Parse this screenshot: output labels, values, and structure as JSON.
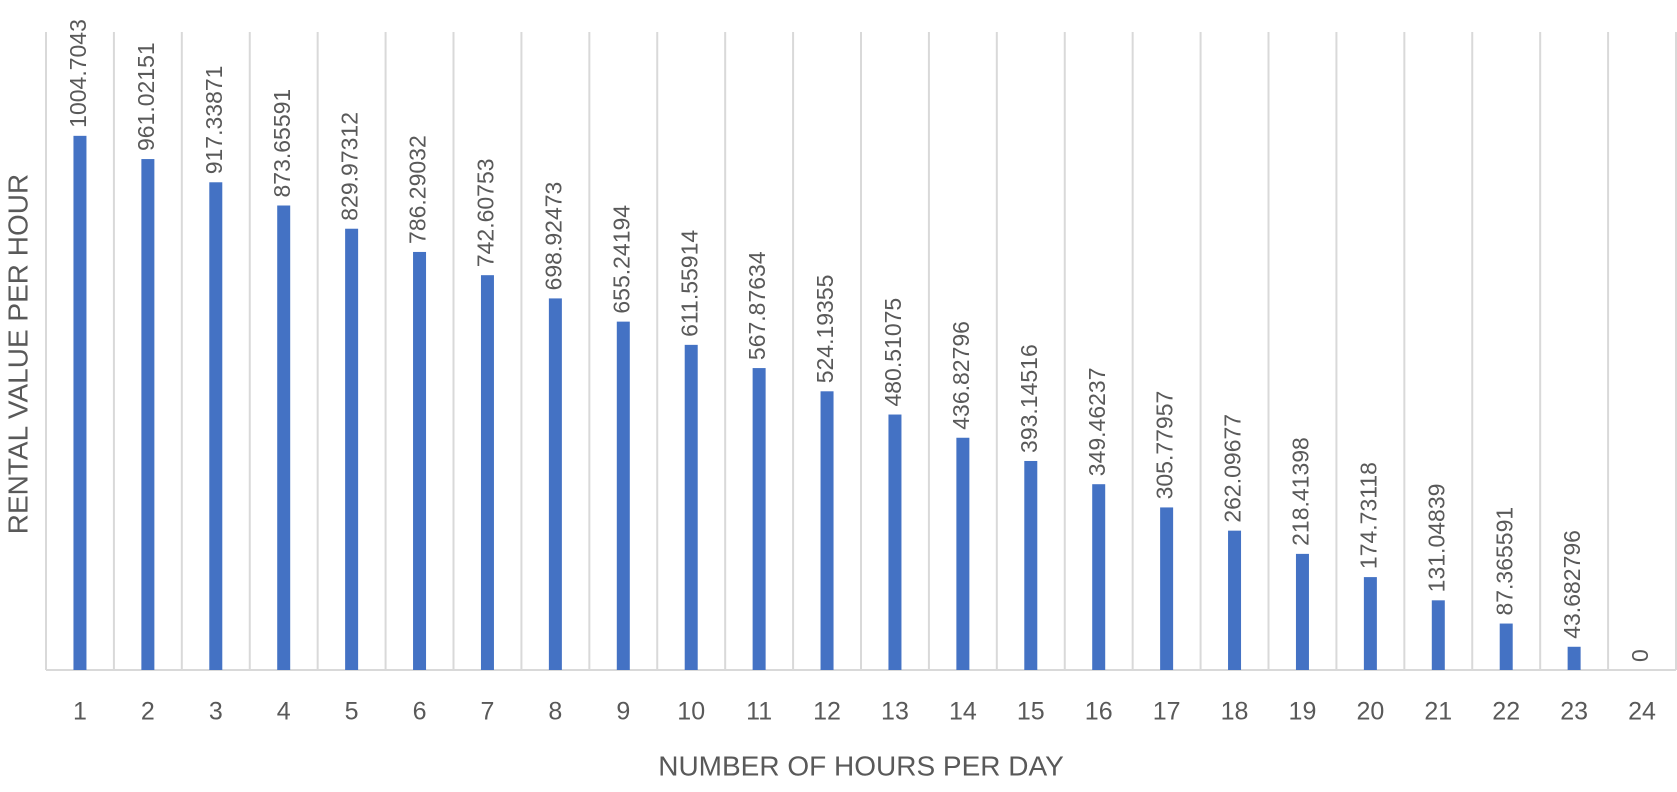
{
  "chart_data": {
    "type": "bar",
    "x_label": "NUMBER OF HOURS PER DAY",
    "y_label": "RENTAL VALUE PER HOUR",
    "categories": [
      "1",
      "2",
      "3",
      "4",
      "5",
      "6",
      "7",
      "8",
      "9",
      "10",
      "11",
      "12",
      "13",
      "14",
      "15",
      "16",
      "17",
      "18",
      "19",
      "20",
      "21",
      "22",
      "23",
      "24"
    ],
    "values": [
      1004.7043,
      961.02151,
      917.33871,
      873.65591,
      829.97312,
      786.29032,
      742.60753,
      698.92473,
      655.24194,
      611.55914,
      567.87634,
      524.19355,
      480.51075,
      436.82796,
      393.14516,
      349.46237,
      305.77957,
      262.09677,
      218.41398,
      174.73118,
      131.04839,
      87.365591,
      43.682796,
      0
    ],
    "color": "#4472c4",
    "ylim": [
      0,
      1200
    ],
    "grid": true
  }
}
